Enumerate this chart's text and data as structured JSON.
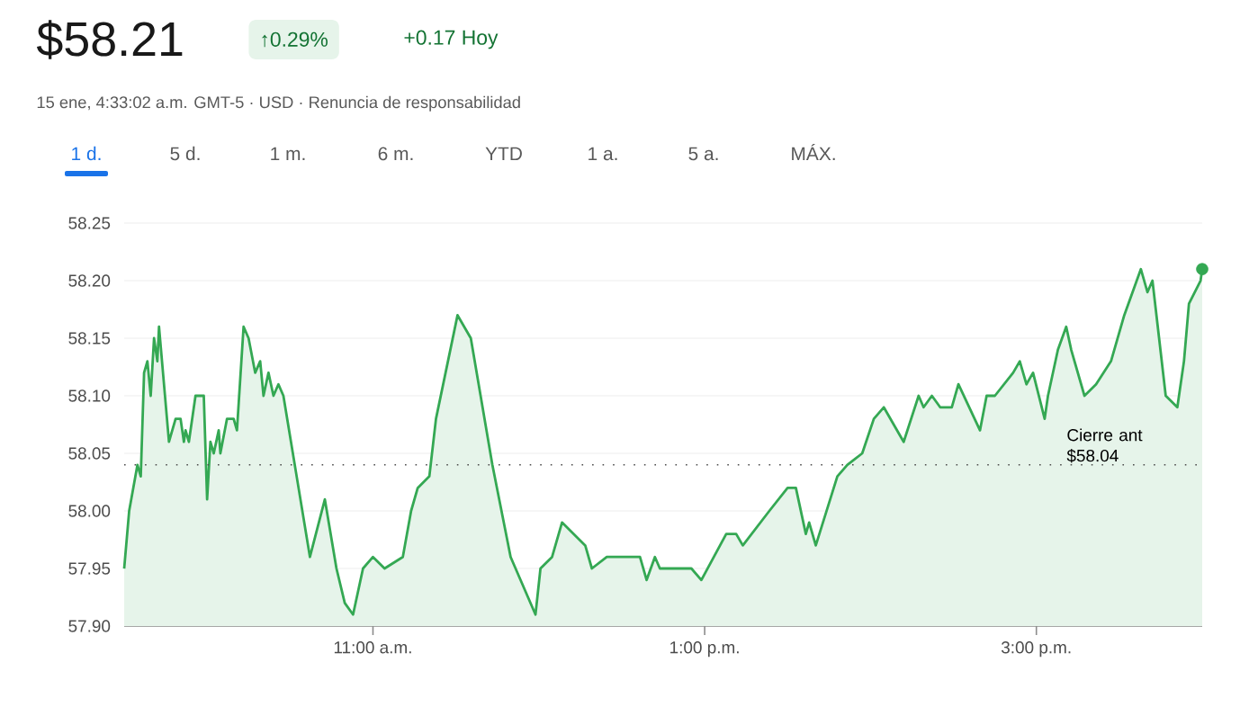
{
  "chart_data": {
    "type": "area",
    "title": "$58.21",
    "subtitle": "15 ene, 4:33:02 a.m. GMT-5 · USD · Renuncia de responsabilidad",
    "annotations": [
      "↑0.29%",
      "+0.17 Hoy",
      "1 d.",
      "5 d.",
      "1 m.",
      "6 m.",
      "YTD",
      "1 a.",
      "5 a.",
      "MÁX."
    ],
    "series": [
      {
        "color": "#34a853",
        "x": [
          9.5,
          9.53,
          9.58,
          9.6,
          9.62,
          9.64,
          9.66,
          9.68,
          9.7,
          9.71,
          9.77,
          9.81,
          9.84,
          9.86,
          9.87,
          9.89,
          9.93,
          9.98,
          10.0,
          10.02,
          10.04,
          10.07,
          10.08,
          10.12,
          10.16,
          10.18,
          10.22,
          10.25,
          10.29,
          10.32,
          10.34,
          10.37,
          10.4,
          10.43,
          10.46,
          10.54,
          10.62,
          10.71,
          10.78,
          10.83,
          10.88,
          10.94,
          11.0,
          11.07,
          11.18,
          11.23,
          11.27,
          11.34,
          11.38,
          11.51,
          11.59,
          11.72,
          11.83,
          11.98,
          12.01,
          12.08,
          12.14,
          12.28,
          12.32,
          12.41,
          12.61,
          12.65,
          12.7,
          12.73,
          12.92,
          12.98,
          13.13,
          13.19,
          13.23,
          13.39,
          13.5,
          13.55,
          13.61,
          13.63,
          13.67,
          13.8,
          13.86,
          13.95,
          14.02,
          14.08,
          14.2,
          14.29,
          14.32,
          14.37,
          14.42,
          14.49,
          14.53,
          14.66,
          14.7,
          14.75,
          14.86,
          14.9,
          14.94,
          14.98,
          15.05,
          15.07,
          15.13,
          15.18,
          15.21,
          15.29,
          15.36,
          15.45,
          15.53,
          15.63,
          15.67,
          15.7,
          15.78,
          15.85,
          15.89,
          15.92,
          15.99,
          16.0
        ],
        "values": [
          57.95,
          58.0,
          58.04,
          58.03,
          58.12,
          58.13,
          58.1,
          58.15,
          58.13,
          58.16,
          58.06,
          58.08,
          58.08,
          58.06,
          58.07,
          58.06,
          58.1,
          58.1,
          58.01,
          58.06,
          58.05,
          58.07,
          58.05,
          58.08,
          58.08,
          58.07,
          58.16,
          58.15,
          58.12,
          58.13,
          58.1,
          58.12,
          58.1,
          58.11,
          58.1,
          58.03,
          57.96,
          58.01,
          57.95,
          57.92,
          57.91,
          57.95,
          57.96,
          57.95,
          57.96,
          58.0,
          58.02,
          58.03,
          58.08,
          58.17,
          58.15,
          58.04,
          57.96,
          57.91,
          57.95,
          57.96,
          57.99,
          57.97,
          57.95,
          57.96,
          57.96,
          57.94,
          57.96,
          57.95,
          57.95,
          57.94,
          57.98,
          57.98,
          57.97,
          58.0,
          58.02,
          58.02,
          57.98,
          57.99,
          57.97,
          58.03,
          58.04,
          58.05,
          58.08,
          58.09,
          58.06,
          58.1,
          58.09,
          58.1,
          58.09,
          58.09,
          58.11,
          58.07,
          58.1,
          58.1,
          58.12,
          58.13,
          58.11,
          58.12,
          58.08,
          58.1,
          58.14,
          58.16,
          58.14,
          58.1,
          58.11,
          58.13,
          58.17,
          58.21,
          58.19,
          58.2,
          58.1,
          58.09,
          58.13,
          58.18,
          58.2,
          58.21
        ]
      },
      {
        "type": "scatter",
        "color": "#34a853",
        "x": [
          16.0
        ],
        "values": [
          58.21
        ]
      }
    ],
    "xlim": [
      9.5,
      16.0
    ],
    "ylim": [
      57.9,
      58.25
    ],
    "xticks": [
      {
        "value": 11,
        "label": "11:00 a.m."
      },
      {
        "value": 13,
        "label": "1:00 p.m."
      },
      {
        "value": 15,
        "label": "3:00 p.m."
      }
    ],
    "yticks": [
      {
        "value": 57.9,
        "label": "57.90"
      },
      {
        "value": 57.95,
        "label": "57.95"
      },
      {
        "value": 58.0,
        "label": "58.00"
      },
      {
        "value": 58.05,
        "label": "58.05"
      },
      {
        "value": 58.1,
        "label": "58.10"
      },
      {
        "value": 58.15,
        "label": "58.15"
      },
      {
        "value": 58.2,
        "label": "58.20"
      },
      {
        "value": 58.25,
        "label": "58.25"
      }
    ],
    "grid": "y",
    "ref_lines": [
      {
        "axis": "y",
        "value": 58.04,
        "label": "Cierre ant $58.04",
        "line_style": "dotted"
      }
    ]
  }
}
